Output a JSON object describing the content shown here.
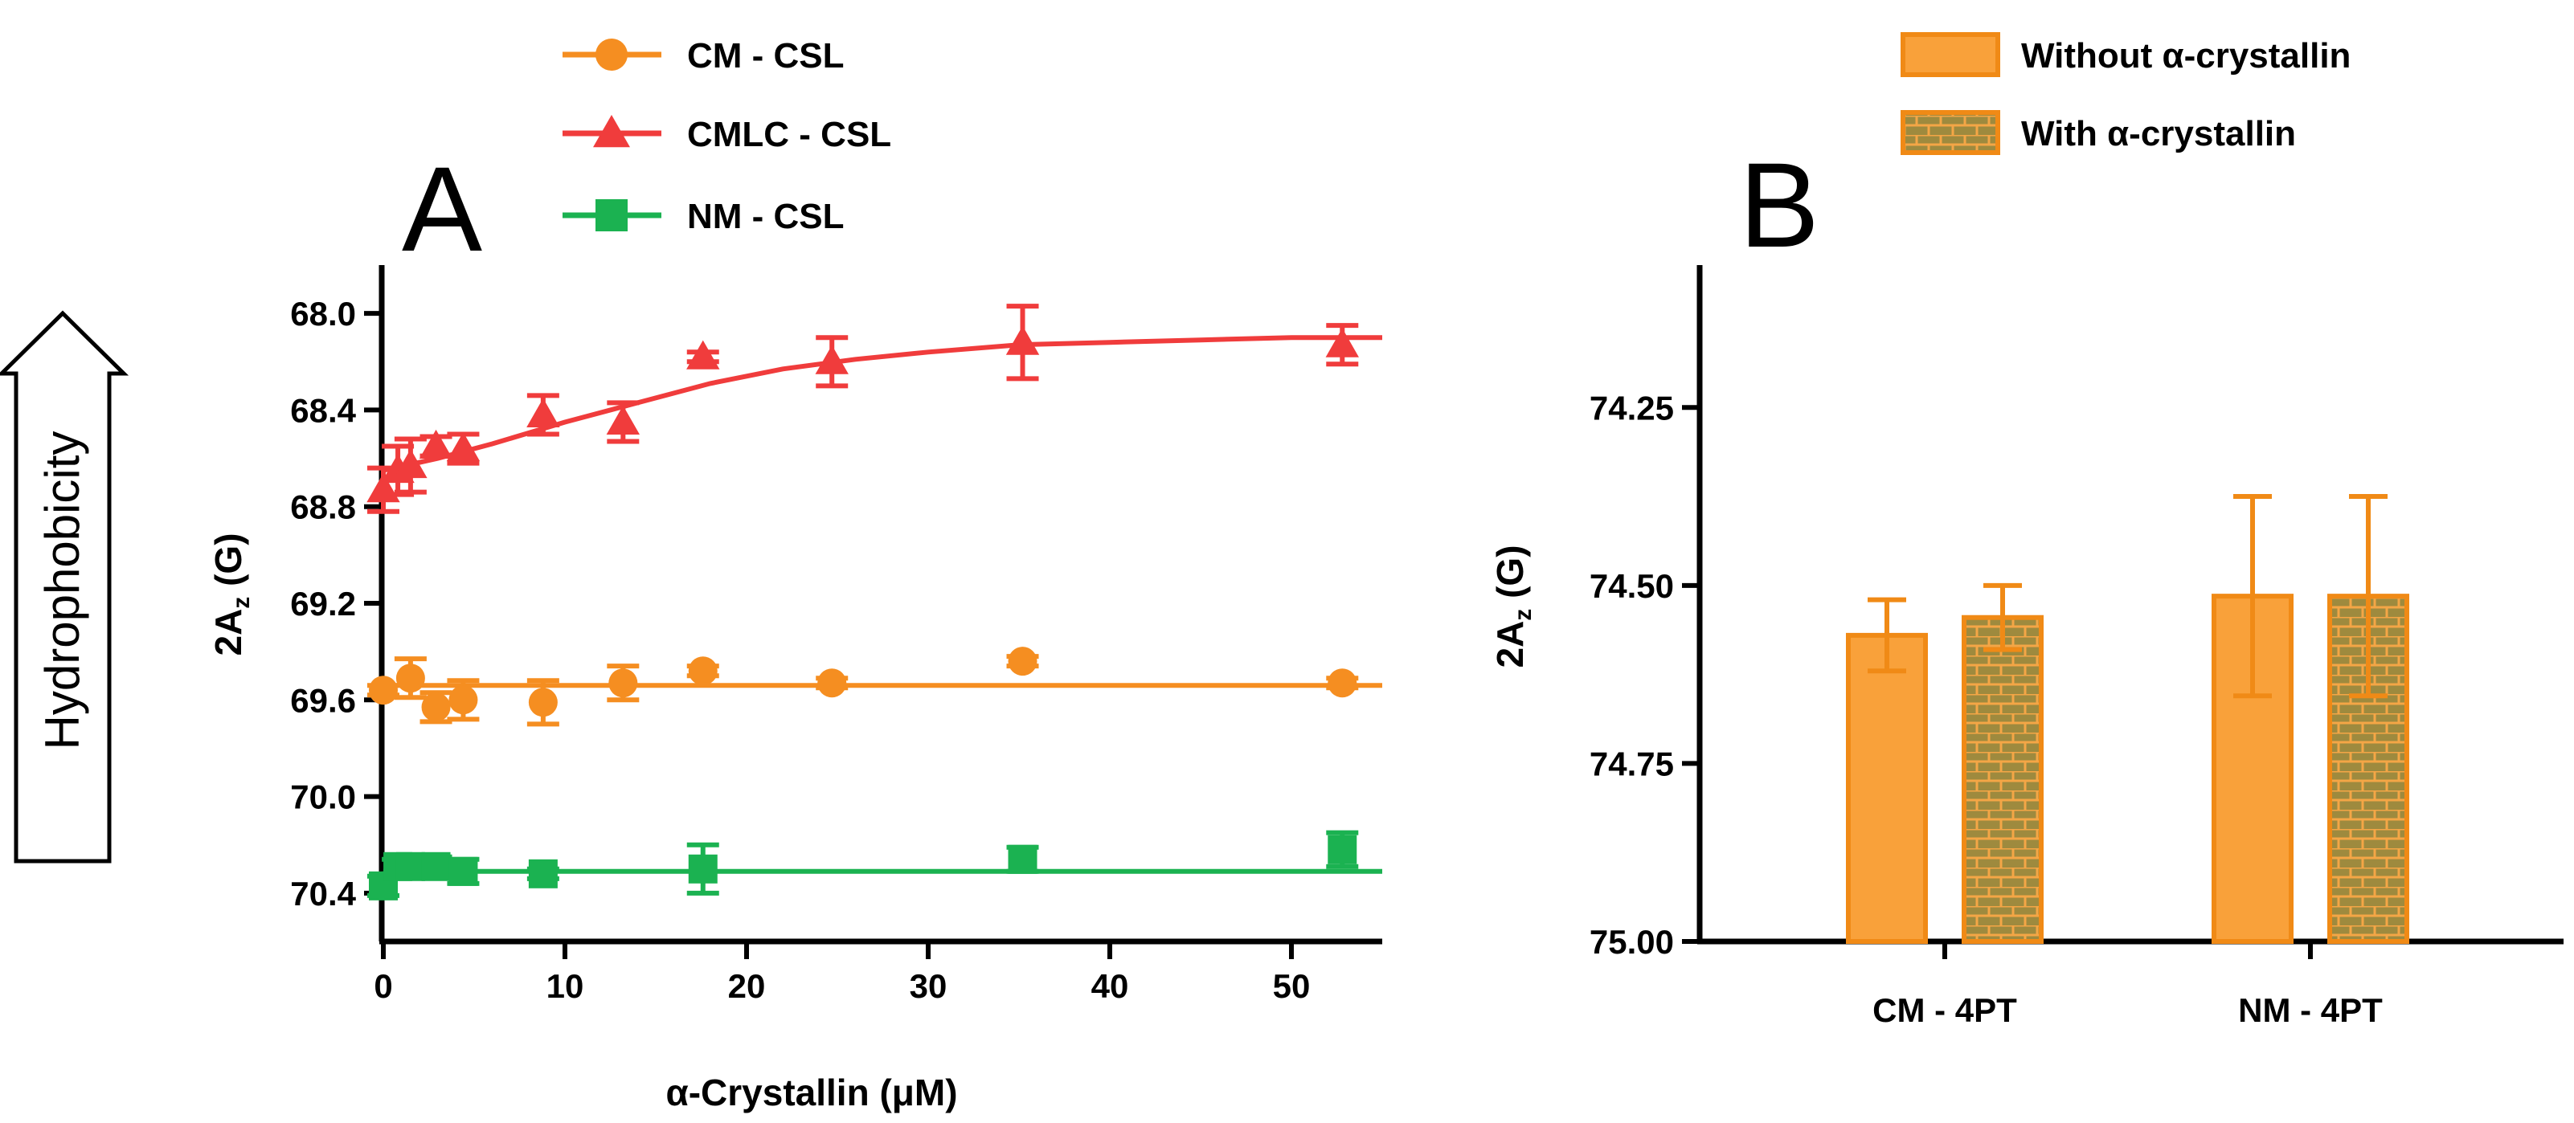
{
  "side_label": "Hydrophobicity",
  "chart_data": [
    {
      "panel": "A",
      "type": "scatter",
      "xlabel": "α-Crystallin (μM)",
      "ylabel": "2A",
      "ylabel_sub": "z",
      "ylabel_unit": " (G)",
      "xlim": [
        0,
        55
      ],
      "ylim": [
        70.6,
        67.8
      ],
      "y_inverted": true,
      "xticks": [
        0,
        10,
        20,
        30,
        40,
        50
      ],
      "yticks": [
        68.0,
        68.4,
        68.8,
        69.2,
        69.6,
        70.0,
        70.4
      ],
      "ytick_labels": [
        "68.0",
        "68.4",
        "68.8",
        "69.2",
        "69.6",
        "70.0",
        "70.4"
      ],
      "legend": "top",
      "series": [
        {
          "name": "CM - CSL",
          "color": "#F58E21",
          "marker": "circle",
          "x": [
            0,
            1.5,
            2.9,
            4.4,
            8.8,
            13.2,
            17.6,
            24.7,
            35.2,
            52.8
          ],
          "y": [
            69.56,
            69.51,
            69.63,
            69.6,
            69.61,
            69.53,
            69.48,
            69.53,
            69.44,
            69.53
          ],
          "err": [
            0.02,
            0.08,
            0.06,
            0.08,
            0.09,
            0.07,
            0.02,
            0.02,
            0.02,
            0.02
          ],
          "fit": {
            "x": [
              0,
              55
            ],
            "y": [
              69.54,
              69.54
            ]
          }
        },
        {
          "name": "CMLC - CSL",
          "color": "#F03C3C",
          "marker": "triangle",
          "x": [
            0,
            0.8,
            1.5,
            2.9,
            4.4,
            8.8,
            13.2,
            17.6,
            24.7,
            35.2,
            52.8
          ],
          "y": [
            68.73,
            68.65,
            68.63,
            68.55,
            68.56,
            68.42,
            68.45,
            68.18,
            68.2,
            68.12,
            68.13
          ],
          "err": [
            0.09,
            0.1,
            0.11,
            0.04,
            0.06,
            0.08,
            0.08,
            0.02,
            0.1,
            0.15,
            0.08
          ],
          "fit": {
            "x": [
              0,
              3,
              6,
              10,
              14,
              18,
              22,
              26,
              30,
              35,
              40,
              45,
              50,
              55
            ],
            "y": [
              68.65,
              68.6,
              68.54,
              68.45,
              68.37,
              68.29,
              68.23,
              68.19,
              68.16,
              68.13,
              68.12,
              68.11,
              68.1,
              68.1
            ]
          }
        },
        {
          "name": "NM - CSL",
          "color": "#1BB251",
          "marker": "square",
          "x": [
            0,
            0.8,
            1.5,
            2.9,
            4.4,
            8.8,
            17.6,
            35.2,
            52.8
          ],
          "y": [
            70.37,
            70.29,
            70.29,
            70.29,
            70.31,
            70.32,
            70.3,
            70.26,
            70.22
          ],
          "err": [
            0.04,
            0.03,
            0.03,
            0.04,
            0.05,
            0.02,
            0.1,
            0.05,
            0.07
          ],
          "fit": {
            "x": [
              0,
              55
            ],
            "y": [
              70.31,
              70.31
            ]
          }
        }
      ]
    },
    {
      "panel": "B",
      "type": "bar",
      "categories": [
        "CM - 4PT",
        "NM - 4PT"
      ],
      "ylabel": "2A",
      "ylabel_sub": "z",
      "ylabel_unit": " (G)",
      "ylim": [
        75.0,
        74.05
      ],
      "y_inverted": true,
      "yticks": [
        74.25,
        74.5,
        74.75,
        75.0
      ],
      "ytick_labels": [
        "74.25",
        "74.50",
        "74.75",
        "75.00"
      ],
      "legend": "top",
      "series": [
        {
          "name": "Without α-crystallin",
          "color": "#F9A13A",
          "pattern": "solid",
          "values": [
            74.57,
            74.515
          ],
          "err": [
            0.05,
            0.14
          ]
        },
        {
          "name": "With α-crystallin",
          "color": "#F9A13A",
          "pattern": "brick",
          "values": [
            74.545,
            74.515
          ],
          "err": [
            0.045,
            0.14
          ]
        }
      ]
    }
  ]
}
